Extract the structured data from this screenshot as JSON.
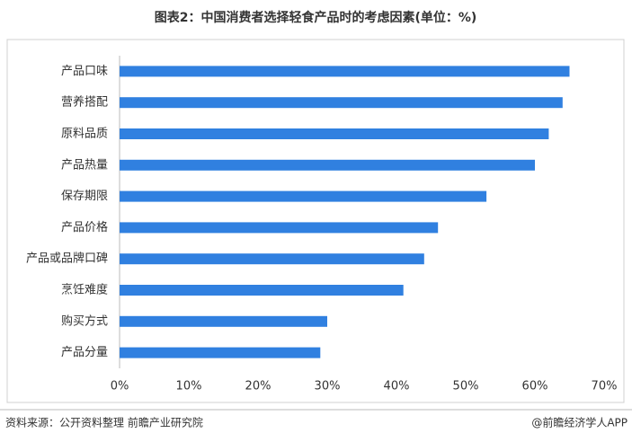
{
  "chart_data": {
    "type": "bar",
    "orientation": "horizontal",
    "title": "图表2：中国消费者选择轻食产品时的考虑因素(单位：%)",
    "categories": [
      "产品口味",
      "营养搭配",
      "原料品质",
      "产品热量",
      "保存期限",
      "产品价格",
      "产品或品牌口碑",
      "烹饪难度",
      "购买方式",
      "产品分量"
    ],
    "values": [
      65,
      64,
      62,
      60,
      53,
      46,
      44,
      41,
      30,
      29
    ],
    "color": "#3080e0",
    "xlim": [
      0,
      70
    ],
    "xticks": [
      {
        "value": 0,
        "label": "0%"
      },
      {
        "value": 10,
        "label": "10%"
      },
      {
        "value": 20,
        "label": "20%"
      },
      {
        "value": 30,
        "label": "30%"
      },
      {
        "value": 40,
        "label": "40%"
      },
      {
        "value": 50,
        "label": "50%"
      },
      {
        "value": 60,
        "label": "60%"
      },
      {
        "value": 70,
        "label": "70%"
      }
    ],
    "grid": false,
    "source": "资料来源：公开资料整理 前瞻产业研究院",
    "credit": "@前瞻经济学人APP"
  }
}
